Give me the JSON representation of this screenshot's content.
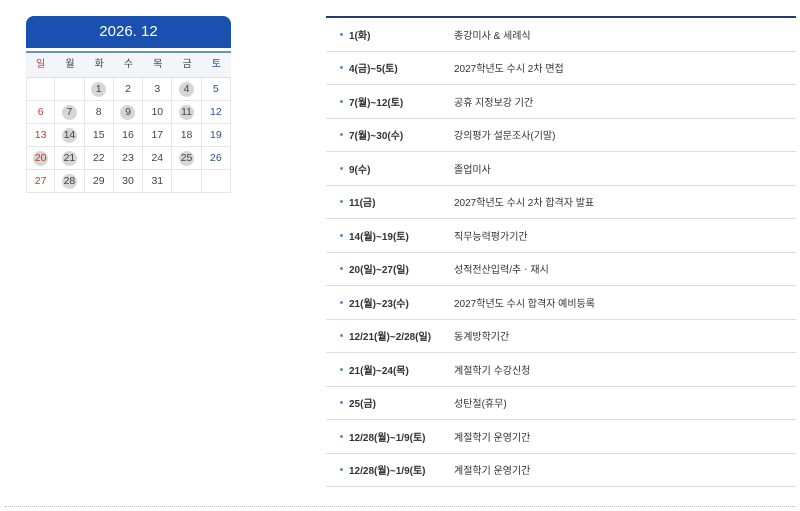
{
  "calendar": {
    "title": "2026. 12",
    "weekdays": [
      "일",
      "월",
      "화",
      "수",
      "목",
      "금",
      "토"
    ],
    "days": [
      null,
      null,
      1,
      2,
      3,
      4,
      5,
      6,
      7,
      8,
      9,
      10,
      11,
      12,
      13,
      14,
      15,
      16,
      17,
      18,
      19,
      20,
      21,
      22,
      23,
      24,
      25,
      26,
      27,
      28,
      29,
      30,
      31,
      null,
      null
    ],
    "event_days": [
      1,
      4,
      7,
      9,
      11,
      14,
      20,
      21,
      25,
      28
    ]
  },
  "events": [
    {
      "date": "1(화)",
      "title": "종강미사 & 세례식"
    },
    {
      "date": "4(금)~5(토)",
      "title": "2027학년도 수시 2차 면접"
    },
    {
      "date": "7(월)~12(토)",
      "title": "공휴 지정보강 기간"
    },
    {
      "date": "7(월)~30(수)",
      "title": "강의평가 설문조사(기말)"
    },
    {
      "date": "9(수)",
      "title": "졸업미사"
    },
    {
      "date": "11(금)",
      "title": "2027학년도 수시 2차 합격자 발표"
    },
    {
      "date": "14(월)~19(토)",
      "title": "직무능력평가기간"
    },
    {
      "date": "20(일)~27(일)",
      "title": "성적전산입력/추ㆍ재시"
    },
    {
      "date": "21(월)~23(수)",
      "title": "2027학년도 수시 합격자 예비등록"
    },
    {
      "date": "12/21(월)~2/28(일)",
      "title": "동계방학기간"
    },
    {
      "date": "21(월)~24(목)",
      "title": "계절학기 수강신청"
    },
    {
      "date": "25(금)",
      "title": "성탄절(휴무)"
    },
    {
      "date": "12/28(월)~1/9(토)",
      "title": "계절학기 운영기간"
    },
    {
      "date": "12/28(월)~1/9(토)",
      "title": "계절학기 운영기간"
    }
  ],
  "colors": {
    "header": "#1a50b0",
    "sunday": "#c0392b",
    "saturday": "#2f4f8f",
    "event_marker": "#d6d6d6"
  }
}
